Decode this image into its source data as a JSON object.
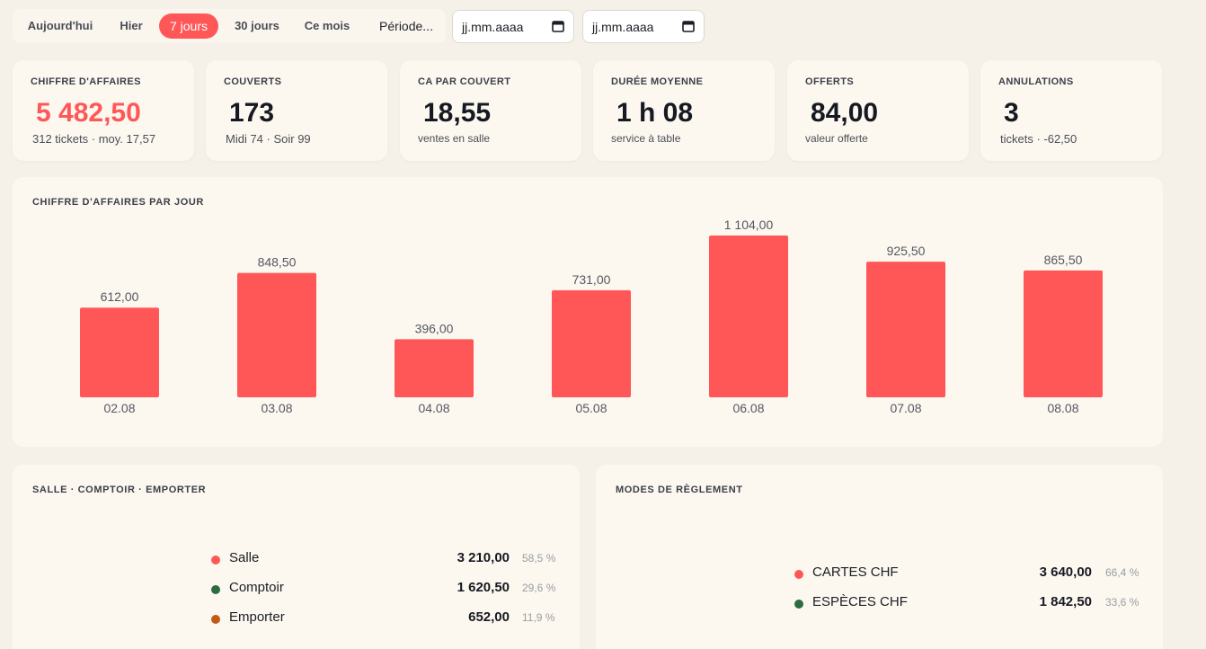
{
  "filters": {
    "buttons": [
      "Aujourd'hui",
      "Hier",
      "7 jours",
      "30 jours",
      "Ce mois",
      "Période..."
    ],
    "active": "7 jours",
    "date_from_placeholder": "jj.mm.aaaa",
    "date_to_placeholder": "jj.mm.aaaa"
  },
  "kpis": [
    {
      "label": "CHIFFRE D'AFFAIRES",
      "value": "5 482,50",
      "sub": "312 tickets · moy. 17,57"
    },
    {
      "label": "COUVERTS",
      "value": "173",
      "sub": "Midi 74 · Soir 99"
    },
    {
      "label": "CA PAR COUVERT",
      "value": "18,55",
      "sub": "ventes en salle"
    },
    {
      "label": "DURÉE MOYENNE",
      "value": "1 h 08",
      "sub": "service à table"
    },
    {
      "label": "OFFERTS",
      "value": "84,00",
      "sub": "valeur offerte"
    },
    {
      "label": "ANNULATIONS",
      "value": "3",
      "sub": "tickets · -62,50"
    }
  ],
  "chart_title": "CHIFFRE D'AFFAIRES PAR JOUR",
  "chart_data": {
    "type": "bar",
    "categories": [
      "02.08",
      "03.08",
      "04.08",
      "05.08",
      "06.08",
      "07.08",
      "08.08"
    ],
    "values": [
      612.0,
      848.5,
      396.0,
      731.0,
      1104.0,
      925.5,
      865.5
    ],
    "value_labels": [
      "612,00",
      "848,50",
      "396,00",
      "731,00",
      "1 104,00",
      "925,50",
      "865,50"
    ],
    "title": "CHIFFRE D'AFFAIRES PAR JOUR",
    "xlabel": "",
    "ylabel": "",
    "ylim": [
      0,
      1104
    ],
    "grid": false,
    "color": "#ff5757"
  },
  "split": {
    "title": "SALLE · COMPTOIR · EMPORTER",
    "rows": [
      {
        "name": "Salle",
        "value": "3 210,00",
        "pct": "58,5 %",
        "color": "#ff5757"
      },
      {
        "name": "Comptoir",
        "value": "1 620,50",
        "pct": "29,6 %",
        "color": "#2e6b3e"
      },
      {
        "name": "Emporter",
        "value": "652,00",
        "pct": "11,9 %",
        "color": "#c35a14"
      }
    ]
  },
  "payments": {
    "title": "MODES DE RÈGLEMENT",
    "rows": [
      {
        "name": "CARTES CHF",
        "value": "3 640,00",
        "pct": "66,4 %",
        "color": "#ff5757"
      },
      {
        "name": "ESPÈCES CHF",
        "value": "1 842,50",
        "pct": "33,6 %",
        "color": "#2e6b3e"
      }
    ]
  }
}
